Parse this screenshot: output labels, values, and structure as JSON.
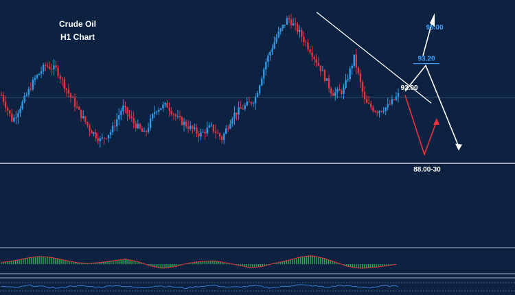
{
  "chart_data": {
    "type": "candlestick",
    "title": "Crude Oil",
    "subtitle": "H1 Chart",
    "colors": {
      "background": "#0c2240",
      "up_candle": "#2f9be8",
      "down_candle": "#e8323c",
      "forecast_primary": "#ffffff",
      "forecast_alt": "#e8323c",
      "target_label": "#3aa0ff",
      "histogram_up": "#2fa84f",
      "histogram_line": "#e8323c",
      "oscillator_line": "#3a7bd5"
    },
    "price_levels": [
      {
        "label": "95.00",
        "price": 95.0,
        "color": "#3aa0ff"
      },
      {
        "label": "93.20",
        "price": 93.2,
        "color": "#3aa0ff"
      },
      {
        "label": "92.00",
        "price": 92.0,
        "color": "#ffffff"
      },
      {
        "label": "88.00-30",
        "price": 88.15,
        "color": "#ffffff"
      }
    ],
    "price_path": [
      91.6,
      90.3,
      91.3,
      92.4,
      93.1,
      92.9,
      91.8,
      90.8,
      89.9,
      89.3,
      89.8,
      91.0,
      90.2,
      89.6,
      90.9,
      91.1,
      90.4,
      90.0,
      89.6,
      90.0,
      89.4,
      90.6,
      91.0,
      91.4,
      93.3,
      94.6,
      95.5,
      94.8,
      93.9,
      92.9,
      91.7,
      91.8,
      93.5,
      91.2,
      90.8,
      91.0,
      91.6
    ],
    "trendline": [
      [
        0,
        95.8
      ],
      [
        1,
        91.2
      ]
    ],
    "horizontal_lines": [
      91.5,
      88.15
    ],
    "forecast_main": [
      91.8,
      93.1,
      89.0
    ],
    "forecast_alt": [
      91.6,
      88.6,
      90.2
    ],
    "indicator_histogram": [
      0.2,
      0.4,
      0.7,
      0.9,
      0.8,
      0.5,
      0.2,
      0.1,
      0.2,
      0.4,
      0.6,
      0.3,
      -0.2,
      -0.5,
      -0.3,
      0.1,
      0.3,
      0.4,
      0.2,
      -0.1,
      -0.4,
      -0.3,
      0.1,
      0.4,
      0.8,
      1.0,
      0.7,
      0.2,
      -0.3,
      -0.5,
      -0.4,
      -0.2,
      0.0
    ],
    "oscillator": [
      0.1,
      -0.2,
      0.3,
      0.0,
      -0.3,
      0.2,
      0.1,
      -0.1,
      0.3,
      0.0,
      -0.2,
      0.2,
      0.0,
      -0.3,
      0.1,
      0.3,
      -0.1,
      0.0,
      0.2,
      -0.2,
      0.1,
      0.4,
      0.2,
      -0.1,
      0.3,
      0.0,
      -0.2,
      0.2,
      0.1
    ]
  }
}
